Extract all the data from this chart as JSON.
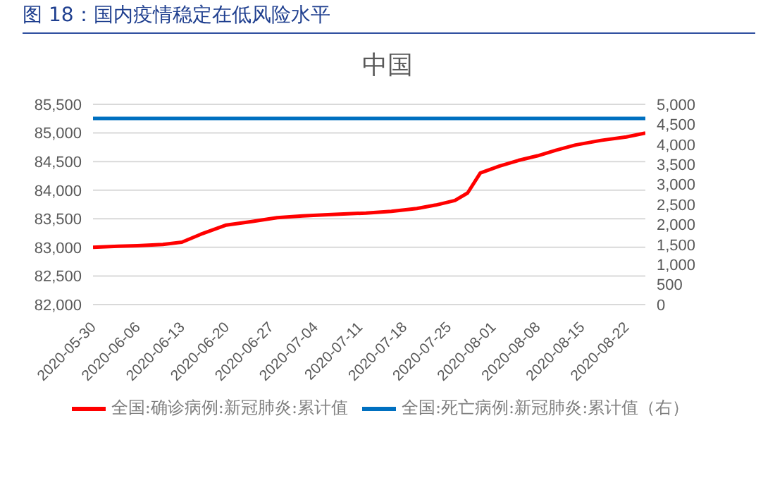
{
  "chart_data": {
    "type": "line",
    "title": "图 18：国内疫情稳定在低风险水平",
    "subtitle": "中国",
    "x": [
      "2020-05-30",
      "2020-06-03",
      "2020-06-06",
      "2020-06-10",
      "2020-06-13",
      "2020-06-16",
      "2020-06-20",
      "2020-06-24",
      "2020-06-28",
      "2020-07-02",
      "2020-07-06",
      "2020-07-12",
      "2020-07-16",
      "2020-07-20",
      "2020-07-23",
      "2020-07-26",
      "2020-07-28",
      "2020-07-30",
      "2020-08-02",
      "2020-08-05",
      "2020-08-08",
      "2020-08-11",
      "2020-08-14",
      "2020-08-18",
      "2020-08-22",
      "2020-08-25"
    ],
    "series": [
      {
        "name": "全国:确诊病例:新冠肺炎:累计值",
        "color": "#ff0000",
        "values": [
          83000,
          83020,
          83030,
          83050,
          83090,
          83230,
          83390,
          83450,
          83520,
          83550,
          83570,
          83600,
          83630,
          83680,
          83740,
          83820,
          83950,
          84300,
          84420,
          84520,
          84600,
          84700,
          84790,
          84870,
          84930,
          85000
        ]
      },
      {
        "name": "全国:死亡病例:新冠肺炎:累计值（右）",
        "color": "#0070c0",
        "axis": "y2",
        "values": [
          4650,
          4650,
          4650,
          4650,
          4650,
          4650,
          4650,
          4650,
          4650,
          4650,
          4650,
          4650,
          4650,
          4650,
          4650,
          4650,
          4650,
          4650,
          4650,
          4650,
          4650,
          4650,
          4650,
          4650,
          4650,
          4650
        ]
      }
    ],
    "xlim": [
      "2020-05-30",
      "2020-08-25"
    ],
    "xticks": [
      {
        "value": "2020-05-30",
        "label": "2020-05-30"
      },
      {
        "value": "2020-06-06",
        "label": "2020-06-06"
      },
      {
        "value": "2020-06-13",
        "label": "2020-06-13"
      },
      {
        "value": "2020-06-20",
        "label": "2020-06-20"
      },
      {
        "value": "2020-06-27",
        "label": "2020-06-27"
      },
      {
        "value": "2020-07-04",
        "label": "2020-07-04"
      },
      {
        "value": "2020-07-11",
        "label": "2020-07-11"
      },
      {
        "value": "2020-07-18",
        "label": "2020-07-18"
      },
      {
        "value": "2020-07-25",
        "label": "2020-07-25"
      },
      {
        "value": "2020-08-01",
        "label": "2020-08-01"
      },
      {
        "value": "2020-08-08",
        "label": "2020-08-08"
      },
      {
        "value": "2020-08-15",
        "label": "2020-08-15"
      },
      {
        "value": "2020-08-22",
        "label": "2020-08-22"
      }
    ],
    "ylim": [
      82000,
      85500
    ],
    "yticks": [
      {
        "value": 82000,
        "label": "82,000"
      },
      {
        "value": 82500,
        "label": "82,500"
      },
      {
        "value": 83000,
        "label": "83,000"
      },
      {
        "value": 83500,
        "label": "83,500"
      },
      {
        "value": 84000,
        "label": "84,000"
      },
      {
        "value": 84500,
        "label": "84,500"
      },
      {
        "value": 85000,
        "label": "85,000"
      },
      {
        "value": 85500,
        "label": "85,500"
      }
    ],
    "y2lim": [
      0,
      5000
    ],
    "y2ticks": [
      0,
      500,
      {
        "value": 1000,
        "label": "1,000"
      },
      {
        "value": 1500,
        "label": "1,500"
      },
      {
        "value": 2000,
        "label": "2,000"
      },
      {
        "value": 2500,
        "label": "2,500"
      },
      {
        "value": 3000,
        "label": "3,000"
      },
      {
        "value": 3500,
        "label": "3,500"
      },
      {
        "value": 4000,
        "label": "4,000"
      },
      {
        "value": 4500,
        "label": "4,500"
      },
      {
        "value": 5000,
        "label": "5,000"
      }
    ],
    "grid": "y",
    "legend": "bottom"
  }
}
